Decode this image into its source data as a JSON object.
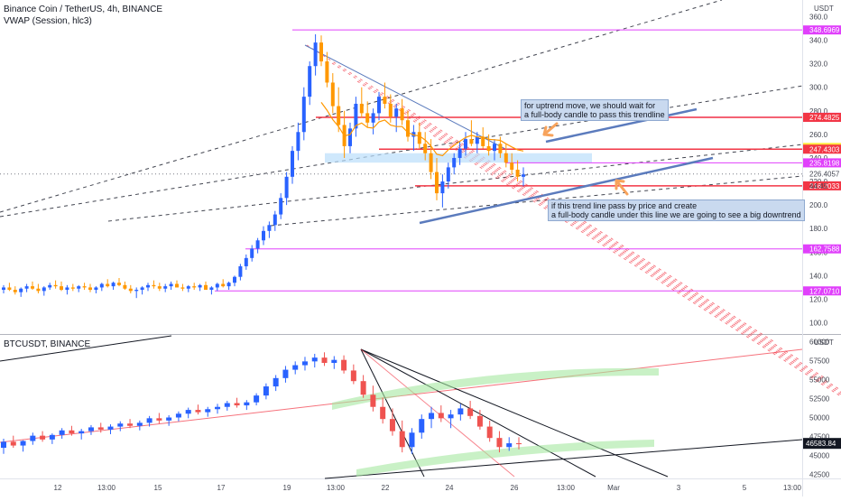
{
  "header": {
    "symbol_line": "Binance Coin / TetherUS, 4h, BINANCE",
    "indicator_line": "VWAP (Session, hlc3)",
    "currency": "USDT"
  },
  "lower_pane": {
    "symbol_line": "BTCUSDT, BINANCE",
    "currency": "USDT"
  },
  "annotations": {
    "note_up_1": "for uptrend move, we should wait for",
    "note_up_2": "a full-body candle to pass this trendline",
    "note_down_1": "if this trend line pass by price and create",
    "note_down_2": "a full-body candle under this line we are going to see a big downtrend"
  },
  "countdown": "44:45",
  "colors": {
    "up": "#26a69a",
    "down": "#ef5350",
    "bnb_up": "#2962ff",
    "bnb_down": "#ff9800",
    "level_magenta": "#e040fb",
    "level_red": "#f23645",
    "trend_blue": "#5b7bbd",
    "vwap": "#ff9800"
  },
  "chart_data": [
    {
      "type": "candlestick",
      "title": "Binance Coin / TetherUS, 4h, BINANCE",
      "x_ticks": [
        "12",
        "13:00",
        "15",
        "17",
        "19",
        "13:00",
        "22",
        "24",
        "26",
        "13:00",
        "Mar",
        "3",
        "5",
        "13:00"
      ],
      "y_ticks": [
        100.0,
        120.0,
        140.0,
        160.0,
        180.0,
        200.0,
        220.0,
        240.0,
        260.0,
        280.0,
        300.0,
        320.0,
        340.0,
        360.0
      ],
      "ylim": [
        92,
        368
      ],
      "levels": [
        {
          "label": "348.6969",
          "value": 348.6969,
          "color": "#e040fb"
        },
        {
          "label": "274.5473",
          "value": 274.5473,
          "color": "#e040fb"
        },
        {
          "label": "274.4825",
          "value": 274.4825,
          "color": "#f23645"
        },
        {
          "label": "248.9246",
          "value": 248.9246,
          "color": "#ffeb3b"
        },
        {
          "label": "247.4303",
          "value": 247.4303,
          "color": "#f23645"
        },
        {
          "label": "235.8198",
          "value": 235.8198,
          "color": "#e040fb"
        },
        {
          "label": "216.3033",
          "value": 216.3033,
          "color": "#f23645"
        },
        {
          "label": "162.7588",
          "value": 162.7588,
          "color": "#e040fb"
        },
        {
          "label": "127.0710",
          "value": 127.071,
          "color": "#e040fb"
        }
      ],
      "last_price": {
        "label": "226.4057",
        "value": 226.4057
      },
      "ohlc": [
        [
          128,
          132,
          125,
          130
        ],
        [
          130,
          134,
          127,
          128
        ],
        [
          128,
          131,
          124,
          126
        ],
        [
          126,
          130,
          122,
          129
        ],
        [
          129,
          133,
          126,
          131
        ],
        [
          131,
          135,
          128,
          129
        ],
        [
          129,
          133,
          125,
          127
        ],
        [
          127,
          131,
          123,
          130
        ],
        [
          130,
          134,
          128,
          132
        ],
        [
          132,
          136,
          129,
          131
        ],
        [
          131,
          135,
          127,
          128
        ],
        [
          128,
          132,
          124,
          130
        ],
        [
          130,
          133,
          127,
          129
        ],
        [
          129,
          132,
          126,
          131
        ],
        [
          131,
          134,
          128,
          130
        ],
        [
          130,
          133,
          126,
          128
        ],
        [
          128,
          131,
          125,
          130
        ],
        [
          130,
          134,
          127,
          133
        ],
        [
          133,
          137,
          130,
          131
        ],
        [
          131,
          135,
          128,
          134
        ],
        [
          134,
          138,
          131,
          132
        ],
        [
          132,
          135,
          128,
          129
        ],
        [
          129,
          132,
          125,
          127
        ],
        [
          127,
          130,
          121,
          128
        ],
        [
          128,
          131,
          124,
          130
        ],
        [
          130,
          134,
          127,
          132
        ],
        [
          132,
          136,
          129,
          131
        ],
        [
          131,
          134,
          127,
          129
        ],
        [
          129,
          133,
          126,
          131
        ],
        [
          131,
          135,
          128,
          133
        ],
        [
          133,
          136,
          130,
          130
        ],
        [
          130,
          133,
          127,
          129
        ],
        [
          129,
          132,
          126,
          131
        ],
        [
          131,
          134,
          128,
          130
        ],
        [
          130,
          133,
          127,
          132
        ],
        [
          132,
          135,
          129,
          128
        ],
        [
          128,
          131,
          124,
          130
        ],
        [
          130,
          134,
          127,
          133
        ],
        [
          133,
          137,
          130,
          131
        ],
        [
          131,
          135,
          128,
          134
        ],
        [
          134,
          140,
          131,
          139
        ],
        [
          139,
          150,
          136,
          148
        ],
        [
          148,
          158,
          145,
          155
        ],
        [
          155,
          166,
          152,
          163
        ],
        [
          163,
          172,
          159,
          170
        ],
        [
          170,
          182,
          166,
          178
        ],
        [
          178,
          186,
          172,
          183
        ],
        [
          183,
          195,
          178,
          192
        ],
        [
          192,
          210,
          188,
          206
        ],
        [
          206,
          228,
          200,
          224
        ],
        [
          224,
          250,
          218,
          246
        ],
        [
          246,
          270,
          238,
          262
        ],
        [
          262,
          300,
          255,
          292
        ],
        [
          292,
          322,
          285,
          318
        ],
        [
          318,
          345,
          310,
          338
        ],
        [
          338,
          344,
          318,
          322
        ],
        [
          322,
          330,
          300,
          304
        ],
        [
          304,
          312,
          278,
          284
        ],
        [
          284,
          300,
          262,
          268
        ],
        [
          268,
          280,
          240,
          250
        ],
        [
          250,
          270,
          244,
          265
        ],
        [
          265,
          292,
          258,
          286
        ],
        [
          286,
          300,
          274,
          278
        ],
        [
          278,
          288,
          266,
          270
        ],
        [
          270,
          282,
          260,
          278
        ],
        [
          278,
          296,
          272,
          292
        ],
        [
          292,
          304,
          282,
          286
        ],
        [
          286,
          294,
          270,
          275
        ],
        [
          275,
          286,
          262,
          282
        ],
        [
          282,
          290,
          268,
          272
        ],
        [
          272,
          280,
          254,
          258
        ],
        [
          258,
          268,
          246,
          262
        ],
        [
          262,
          270,
          248,
          252
        ],
        [
          252,
          262,
          238,
          244
        ],
        [
          244,
          256,
          222,
          228
        ],
        [
          228,
          240,
          204,
          210
        ],
        [
          210,
          226,
          198,
          220
        ],
        [
          220,
          236,
          214,
          232
        ],
        [
          232,
          244,
          226,
          240
        ],
        [
          240,
          254,
          234,
          248
        ],
        [
          248,
          262,
          242,
          256
        ],
        [
          256,
          272,
          250,
          252
        ],
        [
          252,
          262,
          244,
          258
        ],
        [
          258,
          266,
          248,
          250
        ],
        [
          250,
          260,
          242,
          246
        ],
        [
          246,
          256,
          238,
          252
        ],
        [
          252,
          258,
          240,
          244
        ],
        [
          244,
          252,
          232,
          236
        ],
        [
          236,
          244,
          226,
          230
        ],
        [
          230,
          238,
          220,
          224
        ],
        [
          224,
          232,
          216,
          226
        ]
      ]
    },
    {
      "type": "candlestick",
      "title": "BTCUSDT, BINANCE",
      "y_ticks": [
        42500,
        45000,
        47500,
        50000,
        52500,
        55000,
        57500,
        60000
      ],
      "ylim": [
        42200,
        60300
      ],
      "last_price": {
        "label": "46583.84",
        "value": 46583.84
      },
      "ohlc": [
        [
          46000,
          47200,
          45200,
          46800
        ],
        [
          46800,
          47600,
          46000,
          46300
        ],
        [
          46300,
          47000,
          45500,
          46900
        ],
        [
          46900,
          48000,
          46400,
          47600
        ],
        [
          47600,
          48200,
          46800,
          47100
        ],
        [
          47100,
          47900,
          46500,
          47700
        ],
        [
          47700,
          48600,
          47200,
          48300
        ],
        [
          48300,
          48900,
          47600,
          47900
        ],
        [
          47900,
          48500,
          47100,
          48200
        ],
        [
          48200,
          49000,
          47700,
          48700
        ],
        [
          48700,
          49300,
          48000,
          48400
        ],
        [
          48400,
          49100,
          47800,
          48800
        ],
        [
          48800,
          49500,
          48200,
          49200
        ],
        [
          49200,
          49800,
          48600,
          48900
        ],
        [
          48900,
          49600,
          48300,
          49300
        ],
        [
          49300,
          50200,
          48800,
          49900
        ],
        [
          49900,
          50600,
          49200,
          49600
        ],
        [
          49600,
          50300,
          48900,
          50000
        ],
        [
          50000,
          50800,
          49500,
          50500
        ],
        [
          50500,
          51300,
          49900,
          51000
        ],
        [
          51000,
          51700,
          50400,
          50700
        ],
        [
          50700,
          51400,
          50100,
          51100
        ],
        [
          51100,
          51800,
          50500,
          51400
        ],
        [
          51400,
          52200,
          50900,
          51900
        ],
        [
          51900,
          52600,
          51300,
          51600
        ],
        [
          51600,
          52300,
          51000,
          52000
        ],
        [
          52000,
          53200,
          51600,
          52900
        ],
        [
          52900,
          54500,
          52400,
          54100
        ],
        [
          54100,
          55600,
          53500,
          55200
        ],
        [
          55200,
          56800,
          54600,
          56300
        ],
        [
          56300,
          57400,
          55700,
          56900
        ],
        [
          56900,
          58000,
          56200,
          57400
        ],
        [
          57400,
          58400,
          56600,
          57900
        ],
        [
          57900,
          58600,
          56800,
          57200
        ],
        [
          57200,
          58100,
          56400,
          57600
        ],
        [
          57600,
          58200,
          55800,
          56200
        ],
        [
          56200,
          57000,
          54400,
          54800
        ],
        [
          54800,
          55600,
          52600,
          53000
        ],
        [
          53000,
          54200,
          50800,
          51400
        ],
        [
          51400,
          52600,
          49200,
          49800
        ],
        [
          49800,
          51200,
          47600,
          48200
        ],
        [
          48200,
          49600,
          45400,
          46100
        ],
        [
          46100,
          48600,
          45200,
          48000
        ],
        [
          48000,
          50400,
          47200,
          49800
        ],
        [
          49800,
          51400,
          48600,
          50600
        ],
        [
          50600,
          51600,
          49400,
          49900
        ],
        [
          49900,
          51000,
          48600,
          50400
        ],
        [
          50400,
          51800,
          49600,
          51200
        ],
        [
          51200,
          52200,
          49800,
          50200
        ],
        [
          50200,
          51000,
          48400,
          48800
        ],
        [
          48800,
          49600,
          46800,
          47300
        ],
        [
          47300,
          48200,
          45400,
          46100
        ],
        [
          46100,
          47400,
          45600,
          46600
        ],
        [
          46600,
          47400,
          45800,
          46584
        ]
      ]
    }
  ]
}
